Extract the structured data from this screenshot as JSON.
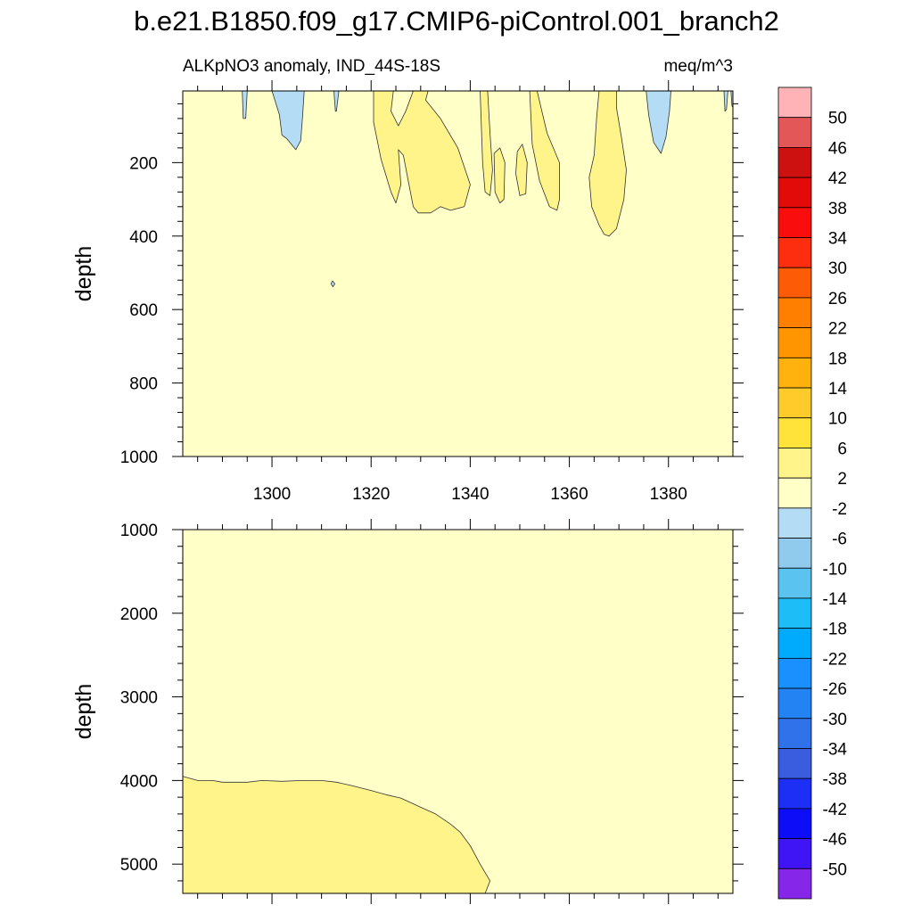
{
  "chart_data": {
    "type": "contour-hovmoller",
    "title": "b.e21.B1850.f09_g17.CMIP6-piControl.001_branch2",
    "left_string": "ALKpNO3 anomaly, IND_44S-18S",
    "right_string": "meq/m^3",
    "x_axis": {
      "label": "",
      "range": [
        1282,
        1393
      ],
      "ticks": [
        1300,
        1320,
        1340,
        1360,
        1380
      ],
      "tick_labels": [
        "1300",
        "1320",
        "1340",
        "1360",
        "1380"
      ]
    },
    "panels": [
      {
        "name": "upper",
        "ylabel": "depth",
        "ylim": [
          5,
          1000
        ],
        "yticks": [
          200,
          400,
          600,
          800,
          1000
        ],
        "ytick_labels": [
          "200",
          "400",
          "600",
          "800",
          "1000"
        ],
        "background_class": "-2 to 2",
        "regions": [
          {
            "class": "-6 to -2",
            "poly": [
              [
                1294,
                5
              ],
              [
                1295,
                5
              ],
              [
                1294.7,
                80
              ],
              [
                1294.2,
                80
              ]
            ]
          },
          {
            "class": "-6 to -2",
            "poly": [
              [
                1300,
                5
              ],
              [
                1306.5,
                5
              ],
              [
                1306.2,
                70
              ],
              [
                1305.8,
                140
              ],
              [
                1304.8,
                165
              ],
              [
                1303,
                135
              ],
              [
                1302,
                125
              ],
              [
                1301.5,
                70
              ]
            ]
          },
          {
            "class": "-6 to -2",
            "poly": [
              [
                1312.5,
                5
              ],
              [
                1313.5,
                5
              ],
              [
                1313,
                60
              ],
              [
                1312.8,
                60
              ]
            ]
          },
          {
            "class": "-6 to -2",
            "poly": [
              [
                1312.2,
                522
              ],
              [
                1312.7,
                530
              ],
              [
                1312.3,
                538
              ],
              [
                1311.9,
                530
              ]
            ]
          },
          {
            "class": "-6 to -2",
            "poly": [
              [
                1375.5,
                5
              ],
              [
                1380.5,
                5
              ],
              [
                1380.2,
                60
              ],
              [
                1379.5,
                130
              ],
              [
                1378.5,
                175
              ],
              [
                1377,
                145
              ],
              [
                1376,
                70
              ]
            ]
          },
          {
            "class": "-6 to -2",
            "poly": [
              [
                1391.2,
                5
              ],
              [
                1392,
                5
              ],
              [
                1391.7,
                55
              ],
              [
                1391.4,
                60
              ]
            ]
          },
          {
            "class": "-6 to -2",
            "poly": [
              [
                1392.6,
                5
              ],
              [
                1393,
                5
              ],
              [
                1393,
                50
              ],
              [
                1392.8,
                45
              ]
            ]
          },
          {
            "class": "2 to 6",
            "poly": [
              [
                1320.5,
                5
              ],
              [
                1324.5,
                5
              ],
              [
                1324,
                60
              ],
              [
                1325.5,
                100
              ],
              [
                1327,
                60
              ],
              [
                1328.5,
                5
              ],
              [
                1331.5,
                5
              ],
              [
                1331,
                30
              ],
              [
                1334,
                80
              ],
              [
                1337.5,
                160
              ],
              [
                1340,
                260
              ],
              [
                1338.8,
                320
              ],
              [
                1336,
                330
              ],
              [
                1334,
                320
              ],
              [
                1332,
                337
              ],
              [
                1329.5,
                337
              ],
              [
                1328.5,
                320
              ],
              [
                1327.5,
                250
              ],
              [
                1326.5,
                180
              ],
              [
                1325.5,
                165
              ],
              [
                1326,
                260
              ],
              [
                1325,
                310
              ],
              [
                1324,
                280
              ],
              [
                1322,
                190
              ],
              [
                1320.5,
                90
              ]
            ]
          },
          {
            "class": "2 to 6",
            "poly": [
              [
                1342,
                5
              ],
              [
                1343.5,
                5
              ],
              [
                1344,
                120
              ],
              [
                1344.5,
                220
              ],
              [
                1344,
                290
              ],
              [
                1343,
                280
              ],
              [
                1342.5,
                200
              ]
            ]
          },
          {
            "class": "2 to 6",
            "poly": [
              [
                1344.8,
                175
              ],
              [
                1346,
                160
              ],
              [
                1347,
                200
              ],
              [
                1346.8,
                300
              ],
              [
                1346,
                310
              ],
              [
                1345,
                280
              ]
            ]
          },
          {
            "class": "2 to 6",
            "poly": [
              [
                1349.5,
                170
              ],
              [
                1350.5,
                150
              ],
              [
                1351.5,
                200
              ],
              [
                1351.2,
                285
              ],
              [
                1350,
                290
              ],
              [
                1349.2,
                230
              ]
            ]
          },
          {
            "class": "2 to 6",
            "poly": [
              [
                1352,
                5
              ],
              [
                1353.5,
                5
              ],
              [
                1355.5,
                120
              ],
              [
                1358,
                200
              ],
              [
                1358,
                300
              ],
              [
                1357.5,
                330
              ],
              [
                1356,
                320
              ],
              [
                1354,
                250
              ],
              [
                1352.5,
                150
              ]
            ]
          },
          {
            "class": "2 to 6",
            "poly": [
              [
                1366,
                5
              ],
              [
                1369.5,
                5
              ],
              [
                1369.5,
                50
              ],
              [
                1370.5,
                130
              ],
              [
                1371.5,
                220
              ],
              [
                1371,
                300
              ],
              [
                1369.5,
                380
              ],
              [
                1368,
                400
              ],
              [
                1367,
                395
              ],
              [
                1366,
                370
              ],
              [
                1364.5,
                320
              ],
              [
                1364,
                240
              ],
              [
                1365,
                180
              ],
              [
                1365.5,
                80
              ]
            ]
          }
        ]
      },
      {
        "name": "lower",
        "ylabel": "depth",
        "ylim": [
          1000,
          5350
        ],
        "yticks": [
          1000,
          2000,
          3000,
          4000,
          5000
        ],
        "ytick_labels": [
          "1000",
          "2000",
          "3000",
          "4000",
          "5000"
        ],
        "background_class": "-2 to 2",
        "regions": [
          {
            "class": "2 to 6",
            "poly": [
              [
                1282,
                3950
              ],
              [
                1285,
                4000
              ],
              [
                1288,
                4000
              ],
              [
                1290,
                4020
              ],
              [
                1295,
                4020
              ],
              [
                1298,
                4000
              ],
              [
                1302,
                4010
              ],
              [
                1306,
                4000
              ],
              [
                1310,
                4000
              ],
              [
                1313,
                4020
              ],
              [
                1316,
                4060
              ],
              [
                1320,
                4120
              ],
              [
                1323,
                4170
              ],
              [
                1326,
                4210
              ],
              [
                1330,
                4320
              ],
              [
                1333,
                4400
              ],
              [
                1336,
                4520
              ],
              [
                1338,
                4620
              ],
              [
                1340,
                4780
              ],
              [
                1342,
                5000
              ],
              [
                1344,
                5200
              ],
              [
                1343,
                5350
              ],
              [
                1282,
                5350
              ]
            ]
          }
        ]
      }
    ],
    "colorbar": {
      "labels": [
        "50",
        "46",
        "42",
        "38",
        "34",
        "30",
        "26",
        "22",
        "18",
        "14",
        "10",
        "6",
        "2",
        "-2",
        "-6",
        "-10",
        "-14",
        "-18",
        "-22",
        "-26",
        "-30",
        "-34",
        "-38",
        "-42",
        "-46",
        "-50"
      ],
      "colors": [
        "#ffb3b6",
        "#e35758",
        "#cd1010",
        "#e30a0a",
        "#fa0d0d",
        "#fd2d10",
        "#fe5b06",
        "#ff7f00",
        "#ff9500",
        "#ffb10d",
        "#ffcb2a",
        "#ffe33b",
        "#fff48a",
        "#ffffc8",
        "#b4dcf4",
        "#90caec",
        "#5bc3f0",
        "#1dbef7",
        "#00abfe",
        "#1a8ffe",
        "#2383f3",
        "#3072ea",
        "#3a5de0",
        "#1d2ff4",
        "#0e0df7",
        "#4015f5",
        "#8626e8"
      ]
    }
  },
  "colors": {
    "class_-2_to_2": "#ffffc8",
    "class_2_to_6": "#fff48a",
    "class_-6_to_-2": "#b4dcf4"
  }
}
